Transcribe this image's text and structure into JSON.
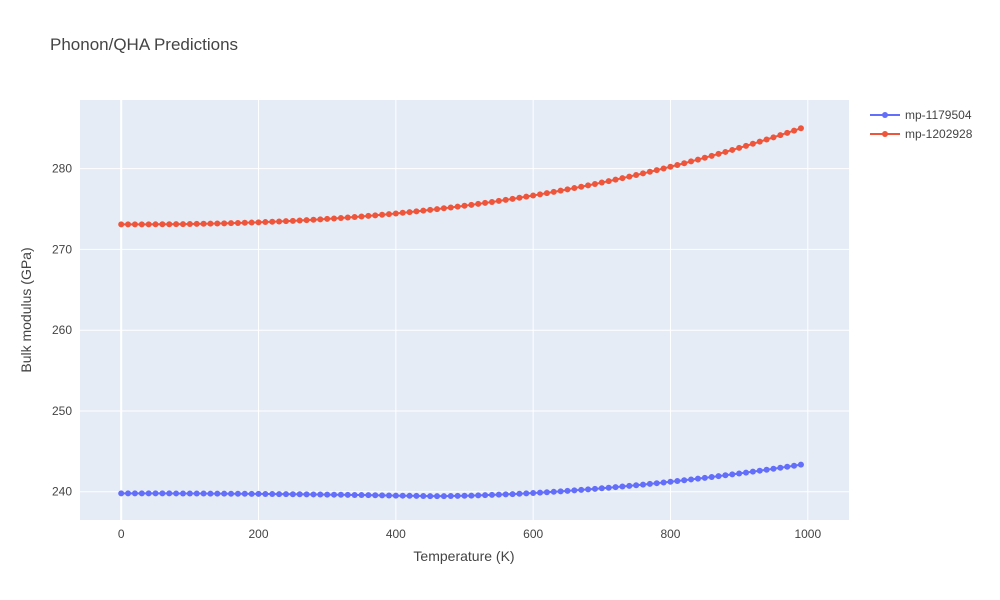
{
  "chart_data": {
    "type": "line",
    "title": "Phonon/QHA Predictions",
    "xlabel": "Temperature (K)",
    "ylabel": "Bulk modulus (GPa)",
    "xlim": [
      -60,
      1060
    ],
    "ylim": [
      236.5,
      288.5
    ],
    "xticks": [
      0,
      200,
      400,
      600,
      800,
      1000
    ],
    "yticks": [
      240,
      250,
      260,
      270,
      280
    ],
    "grid": true,
    "legend_position": "top-right",
    "colors": {
      "plot_bg": "#e5ecf6",
      "grid": "#ffffff",
      "mp-1179504": "#636efa",
      "mp-1202928": "#ef553b"
    },
    "x_step": 10,
    "x_count": 100,
    "series": [
      {
        "name": "mp-1179504",
        "color": "#636efa",
        "curve": {
          "base": 239.8,
          "dip": 0.35,
          "dip_at": 450,
          "rise_from": 450,
          "rise": 3.9,
          "x_end": 990
        }
      },
      {
        "name": "mp-1202928",
        "color": "#ef553b",
        "curve": {
          "start": 273.1,
          "end": 285.0,
          "x_end": 990,
          "power": 2.4
        }
      }
    ]
  }
}
